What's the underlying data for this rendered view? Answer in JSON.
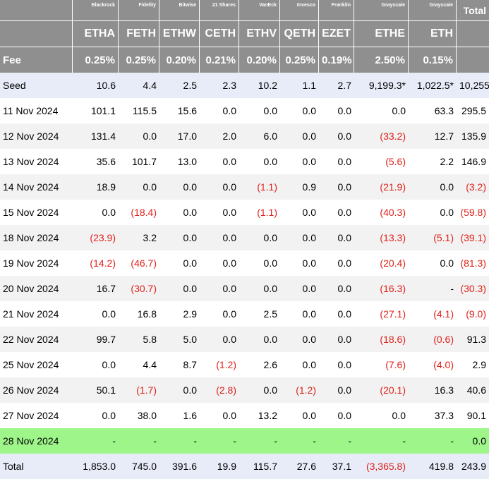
{
  "columns": [
    {
      "issuer": "Blackrock",
      "ticker": "ETHA",
      "fee": "0.25%"
    },
    {
      "issuer": "Fidelity",
      "ticker": "FETH",
      "fee": "0.25%"
    },
    {
      "issuer": "Bitwise",
      "ticker": "ETHW",
      "fee": "0.20%"
    },
    {
      "issuer": "21 Shares",
      "ticker": "CETH",
      "fee": "0.21%"
    },
    {
      "issuer": "VanEck",
      "ticker": "ETHV",
      "fee": "0.20%"
    },
    {
      "issuer": "Invesco",
      "ticker": "QETH",
      "fee": "0.25%"
    },
    {
      "issuer": "Franklin",
      "ticker": "EZET",
      "fee": "0.19%"
    },
    {
      "issuer": "Grayscale",
      "ticker": "ETHE",
      "fee": "2.50%"
    },
    {
      "issuer": "Grayscale",
      "ticker": "ETH",
      "fee": "0.15%"
    }
  ],
  "total_header": "Total",
  "fee_label": "Fee",
  "rows": [
    {
      "label": "Seed",
      "values": [
        "10.6",
        "4.4",
        "2.5",
        "2.3",
        "10.2",
        "1.1",
        "2.7",
        "9,199.3*",
        "1,022.5*",
        "10,255"
      ]
    },
    {
      "label": "11 Nov 2024",
      "values": [
        "101.1",
        "115.5",
        "15.6",
        "0.0",
        "0.0",
        "0.0",
        "0.0",
        "0.0",
        "63.3",
        "295.5"
      ]
    },
    {
      "label": "12 Nov 2024",
      "values": [
        "131.4",
        "0.0",
        "17.0",
        "2.0",
        "6.0",
        "0.0",
        "0.0",
        "(33.2)",
        "12.7",
        "135.9"
      ]
    },
    {
      "label": "13 Nov 2024",
      "values": [
        "35.6",
        "101.7",
        "13.0",
        "0.0",
        "0.0",
        "0.0",
        "0.0",
        "(5.6)",
        "2.2",
        "146.9"
      ]
    },
    {
      "label": "14 Nov 2024",
      "values": [
        "18.9",
        "0.0",
        "0.0",
        "0.0",
        "(1.1)",
        "0.9",
        "0.0",
        "(21.9)",
        "0.0",
        "(3.2)"
      ]
    },
    {
      "label": "15 Nov 2024",
      "values": [
        "0.0",
        "(18.4)",
        "0.0",
        "0.0",
        "(1.1)",
        "0.0",
        "0.0",
        "(40.3)",
        "0.0",
        "(59.8)"
      ]
    },
    {
      "label": "18 Nov 2024",
      "values": [
        "(23.9)",
        "3.2",
        "0.0",
        "0.0",
        "0.0",
        "0.0",
        "0.0",
        "(13.3)",
        "(5.1)",
        "(39.1)"
      ]
    },
    {
      "label": "19 Nov 2024",
      "values": [
        "(14.2)",
        "(46.7)",
        "0.0",
        "0.0",
        "0.0",
        "0.0",
        "0.0",
        "(20.4)",
        "0.0",
        "(81.3)"
      ]
    },
    {
      "label": "20 Nov 2024",
      "values": [
        "16.7",
        "(30.7)",
        "0.0",
        "0.0",
        "0.0",
        "0.0",
        "0.0",
        "(16.3)",
        "-",
        "(30.3)"
      ]
    },
    {
      "label": "21 Nov 2024",
      "values": [
        "0.0",
        "16.8",
        "2.9",
        "0.0",
        "2.5",
        "0.0",
        "0.0",
        "(27.1)",
        "(4.1)",
        "(9.0)"
      ]
    },
    {
      "label": "22 Nov 2024",
      "values": [
        "99.7",
        "5.8",
        "5.0",
        "0.0",
        "0.0",
        "0.0",
        "0.0",
        "(18.6)",
        "(0.6)",
        "91.3"
      ]
    },
    {
      "label": "25 Nov 2024",
      "values": [
        "0.0",
        "4.4",
        "8.7",
        "(1.2)",
        "2.6",
        "0.0",
        "0.0",
        "(7.6)",
        "(4.0)",
        "2.9"
      ]
    },
    {
      "label": "26 Nov 2024",
      "values": [
        "50.1",
        "(1.7)",
        "0.0",
        "(2.8)",
        "0.0",
        "(1.2)",
        "0.0",
        "(20.1)",
        "16.3",
        "40.6"
      ]
    },
    {
      "label": "27 Nov 2024",
      "values": [
        "0.0",
        "38.0",
        "1.6",
        "0.0",
        "13.2",
        "0.0",
        "0.0",
        "0.0",
        "37.3",
        "90.1"
      ]
    },
    {
      "label": "28 Nov 2024",
      "values": [
        "-",
        "-",
        "-",
        "-",
        "-",
        "-",
        "-",
        "-",
        "-",
        "0.0"
      ]
    },
    {
      "label": "Total",
      "values": [
        "1,853.0",
        "745.0",
        "391.6",
        "19.9",
        "115.7",
        "27.6",
        "37.1",
        "(3,365.8)",
        "419.8",
        "243.9"
      ]
    }
  ],
  "colors": {
    "header_bg": "#8f8f8f",
    "negative": "#e0211a",
    "highlight_row": "#9ef58a",
    "seed_total_bg": "#e8ecf8",
    "alt_row_bg": "#f2f2f2"
  }
}
